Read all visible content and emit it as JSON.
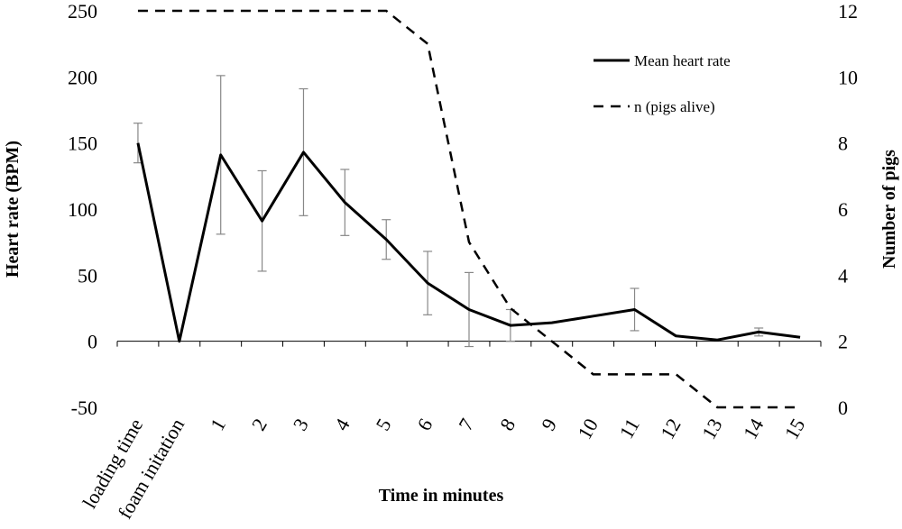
{
  "chart_data": {
    "type": "line",
    "categories": [
      "loading time",
      "foam initation",
      "1",
      "2",
      "3",
      "4",
      "5",
      "6",
      "7",
      "8",
      "9",
      "10",
      "11",
      "12",
      "13",
      "14",
      "15"
    ],
    "xlabel": "Time in minutes",
    "ylabel": "Heart rate (BPM)",
    "y2label": "Number of pigs",
    "ylim": [
      -50,
      250
    ],
    "yticks": [
      -50,
      0,
      50,
      100,
      150,
      200,
      250
    ],
    "y2lim": [
      0,
      12
    ],
    "y2ticks": [
      0,
      2,
      4,
      6,
      8,
      10,
      12
    ],
    "legend_position": "top-right",
    "series": [
      {
        "name": "Mean heart rate",
        "axis": "left",
        "style": "solid",
        "values": [
          150,
          0,
          141,
          91,
          143,
          105,
          77,
          44,
          24,
          12,
          14,
          19,
          24,
          4,
          1,
          7,
          3
        ],
        "error": [
          15,
          null,
          60,
          38,
          48,
          25,
          15,
          24,
          28,
          12,
          null,
          null,
          16,
          null,
          null,
          3,
          null
        ]
      },
      {
        "name": "n (pigs alive)",
        "axis": "right",
        "style": "dashed",
        "values": [
          12,
          12,
          12,
          12,
          12,
          12,
          12,
          11,
          5,
          3,
          2,
          1,
          1,
          1,
          0,
          0,
          0
        ]
      }
    ]
  }
}
